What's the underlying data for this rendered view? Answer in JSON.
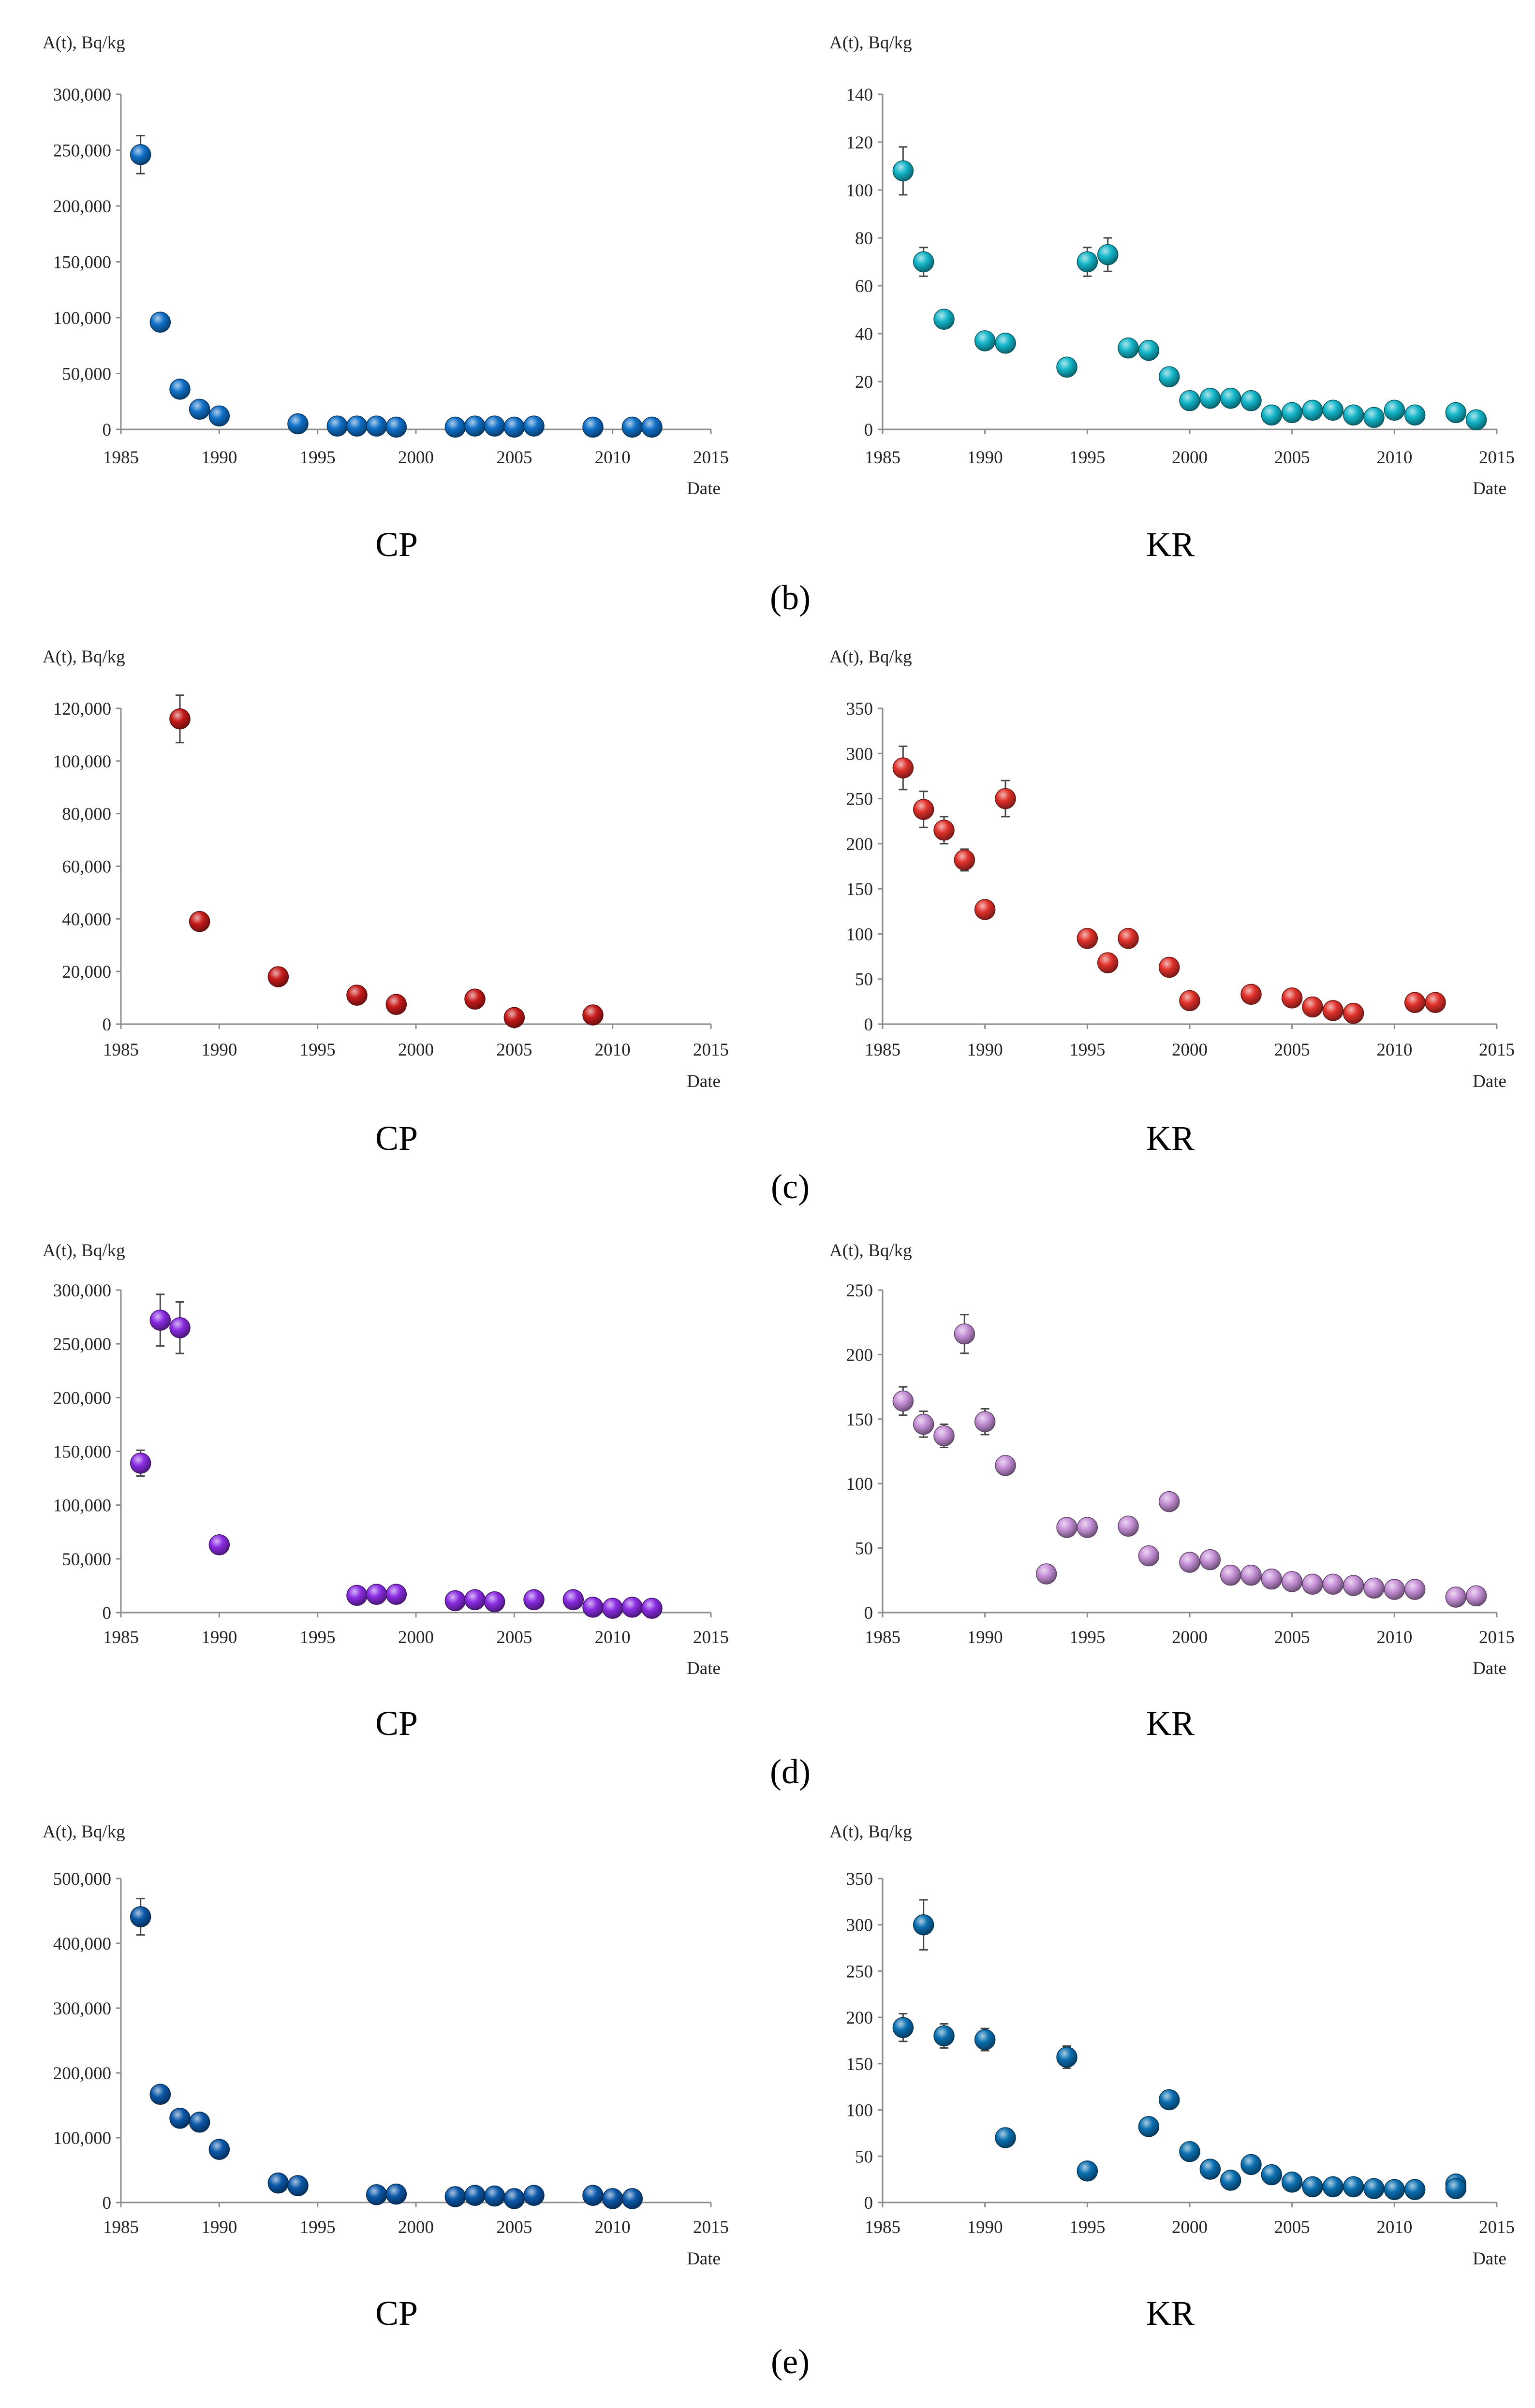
{
  "colors": {
    "b": "#0f6fc7",
    "b_kr": "#12b5c8",
    "c": "#c61a1a",
    "c_kr": "#e0302a",
    "d": "#8a2be2",
    "d_kr": "#c58fd6",
    "e": "#0a57a8",
    "e_kr": "#0a6fb0"
  },
  "charts": [
    {
      "id": "b-cp",
      "row": 0,
      "col": 0,
      "color_key": "b",
      "ylabel": "A(t), Bq/kg",
      "xlabel": "Date",
      "caption": "CP",
      "xlim": [
        1985,
        2015
      ],
      "ylim": [
        0,
        300000
      ],
      "yticks": [
        "0",
        "50,000",
        "100,000",
        "150,000",
        "200,000",
        "250,000",
        "300,000"
      ],
      "xticks": [
        "1985",
        "1990",
        "1995",
        "2000",
        "2005",
        "2010",
        "2015"
      ],
      "chart_data": {
        "type": "scatter",
        "x": [
          1986,
          1987,
          1988,
          1989,
          1990,
          1994,
          1996,
          1997,
          1998,
          1999,
          2002,
          2003,
          2004,
          2005,
          2006,
          2009,
          2011,
          2012
        ],
        "y": [
          246000,
          96000,
          36000,
          18000,
          12000,
          5000,
          3000,
          3000,
          3000,
          2000,
          2000,
          3000,
          3000,
          2000,
          3000,
          2000,
          2000,
          2000
        ],
        "err": [
          17000,
          0,
          0,
          0,
          0,
          0,
          0,
          0,
          0,
          0,
          0,
          0,
          0,
          0,
          0,
          0,
          0,
          0
        ]
      }
    },
    {
      "id": "b-kr",
      "row": 0,
      "col": 1,
      "color_key": "b_kr",
      "ylabel": "A(t), Bq/kg",
      "xlabel": "Date",
      "caption": "KR",
      "xlim": [
        1985,
        2015
      ],
      "ylim": [
        0,
        140
      ],
      "yticks": [
        "0",
        "20",
        "40",
        "60",
        "80",
        "100",
        "120",
        "140"
      ],
      "xticks": [
        "1985",
        "1990",
        "1995",
        "2000",
        "2005",
        "2010",
        "2015"
      ],
      "chart_data": {
        "type": "scatter",
        "x": [
          1986,
          1987,
          1988,
          1990,
          1991,
          1994,
          1995,
          1996,
          1997,
          1998,
          1999,
          2000,
          2001,
          2002,
          2003,
          2004,
          2005,
          2006,
          2007,
          2008,
          2009,
          2010,
          2011,
          2013,
          2014
        ],
        "y": [
          108,
          70,
          46,
          37,
          36,
          26,
          70,
          73,
          34,
          33,
          22,
          12,
          13,
          13,
          12,
          6,
          7,
          8,
          8,
          6,
          5,
          8,
          6,
          7,
          4
        ],
        "err": [
          10,
          6,
          0,
          0,
          0,
          0,
          6,
          7,
          0,
          0,
          0,
          0,
          0,
          0,
          0,
          0,
          0,
          0,
          0,
          0,
          0,
          0,
          0,
          0,
          0
        ]
      }
    },
    {
      "id": "c-cp",
      "row": 1,
      "col": 0,
      "color_key": "c",
      "ylabel": "A(t), Bq/kg",
      "xlabel": "Date",
      "caption": "CP",
      "xlim": [
        1985,
        2015
      ],
      "ylim": [
        0,
        120000
      ],
      "yticks": [
        "0",
        "20,000",
        "40,000",
        "60,000",
        "80,000",
        "100,000",
        "120,000"
      ],
      "xticks": [
        "1985",
        "1990",
        "1995",
        "2000",
        "2005",
        "2010",
        "2015"
      ],
      "chart_data": {
        "type": "scatter",
        "x": [
          1988,
          1989,
          1993,
          1997,
          1999,
          2003,
          2005,
          2009
        ],
        "y": [
          116000,
          39000,
          18000,
          11000,
          7500,
          9500,
          2500,
          3500
        ],
        "err": [
          9000,
          0,
          0,
          0,
          0,
          0,
          0,
          0
        ]
      }
    },
    {
      "id": "c-kr",
      "row": 1,
      "col": 1,
      "color_key": "c_kr",
      "ylabel": "A(t), Bq/kg",
      "xlabel": "Date",
      "caption": "KR",
      "xlim": [
        1985,
        2015
      ],
      "ylim": [
        0,
        350
      ],
      "yticks": [
        "0",
        "50",
        "100",
        "150",
        "200",
        "250",
        "300",
        "350"
      ],
      "xticks": [
        "1985",
        "1990",
        "1995",
        "2000",
        "2005",
        "2010",
        "2015"
      ],
      "chart_data": {
        "type": "scatter",
        "x": [
          1986,
          1987,
          1988,
          1989,
          1990,
          1991,
          1995,
          1996,
          1997,
          1999,
          2000,
          2003,
          2005,
          2006,
          2007,
          2008,
          2011,
          2012
        ],
        "y": [
          284,
          238,
          215,
          182,
          127,
          250,
          95,
          68,
          95,
          63,
          26,
          33,
          29,
          19,
          15,
          12,
          24,
          24
        ],
        "err": [
          24,
          20,
          15,
          12,
          8,
          20,
          0,
          0,
          0,
          0,
          0,
          0,
          0,
          0,
          0,
          0,
          0,
          0
        ]
      }
    },
    {
      "id": "d-cp",
      "row": 2,
      "col": 0,
      "color_key": "d",
      "ylabel": "A(t), Bq/kg",
      "xlabel": "Date",
      "caption": "CP",
      "xlim": [
        1985,
        2015
      ],
      "ylim": [
        0,
        300000
      ],
      "yticks": [
        "0",
        "50,000",
        "100,000",
        "150,000",
        "200,000",
        "250,000",
        "300,000"
      ],
      "xticks": [
        "1985",
        "1990",
        "1995",
        "2000",
        "2005",
        "2010",
        "2015"
      ],
      "chart_data": {
        "type": "scatter",
        "x": [
          1986,
          1987,
          1988,
          1990,
          1997,
          1998,
          1999,
          2002,
          2003,
          2004,
          2006,
          2008,
          2009,
          2010,
          2011,
          2012
        ],
        "y": [
          139000,
          272000,
          265000,
          63000,
          16000,
          17000,
          17000,
          11000,
          12000,
          10000,
          12000,
          12000,
          5000,
          4000,
          5000,
          4000
        ],
        "err": [
          12000,
          24000,
          24000,
          0,
          0,
          0,
          0,
          0,
          0,
          0,
          0,
          0,
          0,
          0,
          0,
          0
        ]
      }
    },
    {
      "id": "d-kr",
      "row": 2,
      "col": 1,
      "color_key": "d_kr",
      "ylabel": "A(t), Bq/kg",
      "xlabel": "Date",
      "caption": "KR",
      "xlim": [
        1985,
        2015
      ],
      "ylim": [
        0,
        250
      ],
      "yticks": [
        "0",
        "50",
        "100",
        "150",
        "200",
        "250"
      ],
      "xticks": [
        "1985",
        "1990",
        "1995",
        "2000",
        "2005",
        "2010",
        "2015"
      ],
      "chart_data": {
        "type": "scatter",
        "x": [
          1986,
          1987,
          1988,
          1989,
          1990,
          1991,
          1993,
          1994,
          1995,
          1997,
          1998,
          1999,
          2000,
          2001,
          2002,
          2003,
          2004,
          2005,
          2006,
          2007,
          2008,
          2009,
          2010,
          2011,
          2013,
          2014
        ],
        "y": [
          164,
          146,
          137,
          216,
          148,
          114,
          30,
          66,
          66,
          67,
          44,
          86,
          39,
          41,
          29,
          29,
          26,
          24,
          22,
          22,
          21,
          19,
          18,
          18,
          12,
          13
        ],
        "err": [
          11,
          10,
          9,
          15,
          10,
          7,
          0,
          0,
          0,
          0,
          0,
          0,
          0,
          0,
          0,
          0,
          0,
          0,
          0,
          0,
          0,
          0,
          0,
          0,
          0,
          0
        ]
      }
    },
    {
      "id": "e-cp",
      "row": 3,
      "col": 0,
      "color_key": "e",
      "ylabel": "A(t), Bq/kg",
      "xlabel": "Date",
      "caption": "CP",
      "xlim": [
        1985,
        2015
      ],
      "ylim": [
        0,
        500000
      ],
      "yticks": [
        "0",
        "100,000",
        "200,000",
        "300,000",
        "400,000",
        "500,000"
      ],
      "xticks": [
        "1985",
        "1990",
        "1995",
        "2000",
        "2005",
        "2010",
        "2015"
      ],
      "chart_data": {
        "type": "scatter",
        "x": [
          1986,
          1987,
          1988,
          1989,
          1990,
          1993,
          1994,
          1998,
          1999,
          2002,
          2003,
          2004,
          2005,
          2006,
          2009,
          2010,
          2011
        ],
        "y": [
          441000,
          167000,
          130000,
          124000,
          82000,
          30000,
          26000,
          12000,
          13000,
          9000,
          11000,
          10000,
          6000,
          11000,
          11000,
          6000,
          6000
        ],
        "err": [
          28000,
          0,
          0,
          0,
          0,
          0,
          0,
          0,
          0,
          0,
          0,
          0,
          0,
          0,
          0,
          0,
          0
        ]
      }
    },
    {
      "id": "e-kr",
      "row": 3,
      "col": 1,
      "color_key": "e_kr",
      "ylabel": "A(t), Bq/kg",
      "xlabel": "Date",
      "caption": "KR",
      "xlim": [
        1985,
        2015
      ],
      "ylim": [
        0,
        350
      ],
      "yticks": [
        "0",
        "50",
        "100",
        "150",
        "200",
        "250",
        "300",
        "350"
      ],
      "xticks": [
        "1985",
        "1990",
        "1995",
        "2000",
        "2005",
        "2010",
        "2015"
      ],
      "chart_data": {
        "type": "scatter",
        "x": [
          1986,
          1987,
          1988,
          1990,
          1991,
          1994,
          1995,
          1998,
          1999,
          2000,
          2001,
          2002,
          2003,
          2004,
          2005,
          2006,
          2007,
          2008,
          2009,
          2010,
          2011,
          2013,
          2013
        ],
        "y": [
          189,
          300,
          180,
          176,
          70,
          157,
          34,
          82,
          111,
          55,
          36,
          24,
          41,
          30,
          22,
          17,
          17,
          17,
          15,
          14,
          14,
          20,
          15
        ],
        "err": [
          15,
          27,
          13,
          12,
          0,
          12,
          0,
          0,
          0,
          0,
          0,
          0,
          0,
          0,
          0,
          0,
          0,
          0,
          0,
          0,
          0,
          0,
          0
        ]
      }
    }
  ],
  "panel_labels": [
    "(b)",
    "(c)",
    "(d)",
    "(e)"
  ]
}
